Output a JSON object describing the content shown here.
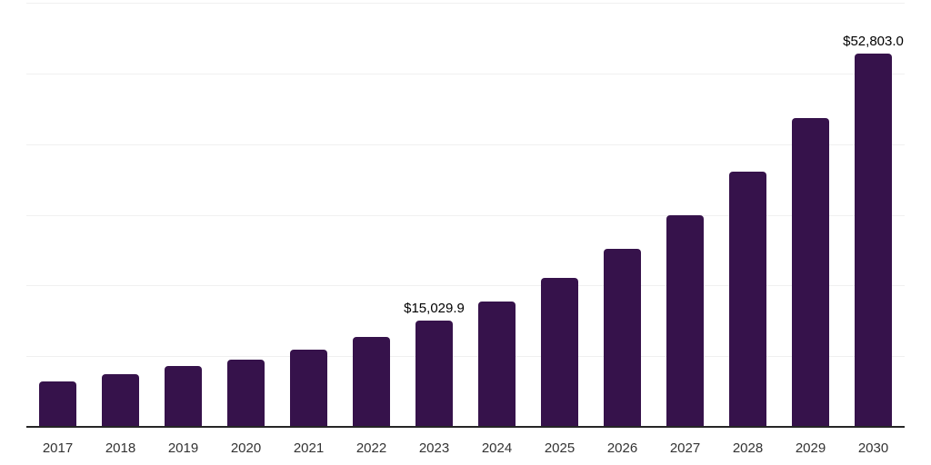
{
  "chart": {
    "bar_color": "#36124b",
    "axis_color": "#262626",
    "grid_color": "#f0f0f0",
    "tick_color": "#333333",
    "point_label_color": "#000000"
  },
  "chart_data": {
    "type": "bar",
    "title": "",
    "xlabel": "",
    "ylabel": "",
    "categories": [
      "2017",
      "2018",
      "2019",
      "2020",
      "2021",
      "2022",
      "2023",
      "2024",
      "2025",
      "2026",
      "2027",
      "2028",
      "2029",
      "2030"
    ],
    "values": [
      6420,
      7450,
      8620,
      9500,
      10950,
      12710,
      15029.9,
      17760,
      21050,
      25130,
      29880,
      36080,
      43700,
      52803.0
    ],
    "point_labels": [
      {
        "category": "2023",
        "text": "$15,029.9"
      },
      {
        "category": "2030",
        "text": "$52,803.0"
      }
    ],
    "ylim": [
      0,
      60000
    ],
    "gridline_step": 10000,
    "grid": true,
    "legend": false,
    "y_axis_labels_visible": false
  }
}
